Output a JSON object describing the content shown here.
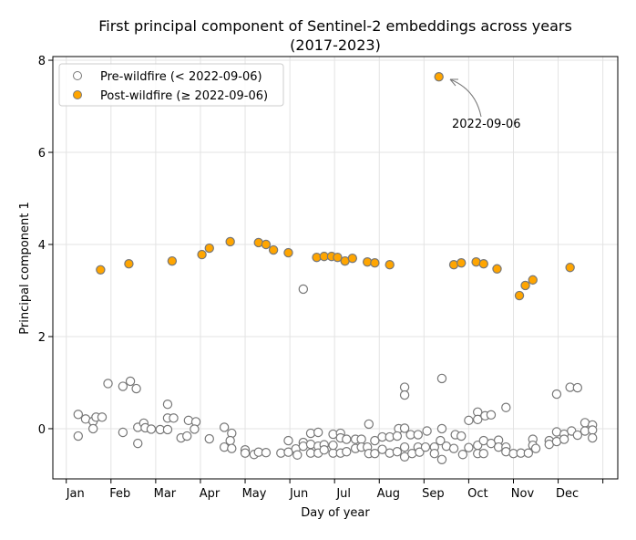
{
  "chart_data": {
    "type": "scatter",
    "title": "First principal component of Sentinel-2 embeddings across years",
    "subtitle": "(2017-2023)",
    "xlabel": "Day of year",
    "ylabel": "Principal component 1",
    "xlim": [
      -9,
      370
    ],
    "ylim": [
      -1.09,
      8.08
    ],
    "grid": true,
    "legend_placement": "top-left",
    "x_ticks": [
      {
        "value": 0,
        "label": "Jan"
      },
      {
        "value": 30,
        "label": "Feb"
      },
      {
        "value": 60,
        "label": "Mar"
      },
      {
        "value": 90,
        "label": "Apr"
      },
      {
        "value": 120,
        "label": "May"
      },
      {
        "value": 150,
        "label": "Jun"
      },
      {
        "value": 180,
        "label": "Jul"
      },
      {
        "value": 210,
        "label": "Aug"
      },
      {
        "value": 240,
        "label": "Sep"
      },
      {
        "value": 270,
        "label": "Oct"
      },
      {
        "value": 300,
        "label": "Nov"
      },
      {
        "value": 330,
        "label": "Dec"
      },
      {
        "value": 360,
        "label": ""
      }
    ],
    "y_ticks": [
      {
        "value": 0,
        "label": "0"
      },
      {
        "value": 2,
        "label": "2"
      },
      {
        "value": 4,
        "label": "4"
      },
      {
        "value": 6,
        "label": "6"
      },
      {
        "value": 8,
        "label": "8"
      }
    ],
    "annotation": {
      "text": "2022-09-06",
      "x": 250,
      "y": 7.64
    },
    "series": [
      {
        "name": "Pre-wildfire (< 2022-09-06)",
        "fill": "#ffffff",
        "edge": "#777777",
        "points": [
          [
            8,
            0.31
          ],
          [
            13,
            0.21
          ],
          [
            18,
            0.16
          ],
          [
            20,
            0.25
          ],
          [
            24,
            0.25
          ],
          [
            18,
            0.0
          ],
          [
            8,
            -0.16
          ],
          [
            28,
            0.98
          ],
          [
            38,
            0.92
          ],
          [
            43,
            1.03
          ],
          [
            47,
            0.87
          ],
          [
            38,
            -0.08
          ],
          [
            48,
            0.03
          ],
          [
            52,
            0.12
          ],
          [
            53,
            0.02
          ],
          [
            57,
            -0.01
          ],
          [
            48,
            -0.32
          ],
          [
            63,
            -0.02
          ],
          [
            68,
            -0.02
          ],
          [
            68,
            0.53
          ],
          [
            68,
            0.23
          ],
          [
            72,
            0.23
          ],
          [
            77,
            -0.2
          ],
          [
            81,
            -0.16
          ],
          [
            82,
            0.18
          ],
          [
            87,
            0.15
          ],
          [
            86,
            -0.01
          ],
          [
            96,
            -0.22
          ],
          [
            106,
            0.03
          ],
          [
            111,
            -0.1
          ],
          [
            110,
            -0.26
          ],
          [
            106,
            -0.4
          ],
          [
            111,
            -0.43
          ],
          [
            120,
            -0.46
          ],
          [
            120,
            -0.53
          ],
          [
            126,
            -0.56
          ],
          [
            129,
            -0.51
          ],
          [
            134,
            -0.52
          ],
          [
            144,
            -0.53
          ],
          [
            149,
            -0.26
          ],
          [
            149,
            -0.51
          ],
          [
            154,
            -0.44
          ],
          [
            155,
            -0.57
          ],
          [
            159,
            -0.3
          ],
          [
            159,
            -0.38
          ],
          [
            164,
            -0.1
          ],
          [
            169,
            -0.08
          ],
          [
            164,
            -0.34
          ],
          [
            164,
            -0.53
          ],
          [
            169,
            -0.38
          ],
          [
            169,
            -0.53
          ],
          [
            173,
            -0.35
          ],
          [
            173,
            -0.46
          ],
          [
            179,
            -0.12
          ],
          [
            179,
            -0.53
          ],
          [
            159,
            3.03
          ],
          [
            184,
            -0.1
          ],
          [
            179,
            -0.36
          ],
          [
            184,
            -0.2
          ],
          [
            184,
            -0.53
          ],
          [
            188,
            -0.23
          ],
          [
            188,
            -0.5
          ],
          [
            194,
            -0.23
          ],
          [
            194,
            -0.43
          ],
          [
            198,
            -0.23
          ],
          [
            198,
            -0.4
          ],
          [
            203,
            0.1
          ],
          [
            202,
            -0.4
          ],
          [
            203,
            -0.54
          ],
          [
            207,
            -0.26
          ],
          [
            207,
            -0.54
          ],
          [
            212,
            -0.18
          ],
          [
            212,
            -0.45
          ],
          [
            217,
            -0.18
          ],
          [
            217,
            -0.53
          ],
          [
            223,
            0.0
          ],
          [
            222,
            -0.16
          ],
          [
            222,
            -0.5
          ],
          [
            227,
            0.9
          ],
          [
            227,
            0.73
          ],
          [
            227,
            0.01
          ],
          [
            227,
            -0.4
          ],
          [
            227,
            -0.61
          ],
          [
            231,
            -0.13
          ],
          [
            232,
            -0.54
          ],
          [
            236,
            -0.13
          ],
          [
            236,
            -0.4
          ],
          [
            237,
            -0.51
          ],
          [
            242,
            -0.05
          ],
          [
            241,
            -0.4
          ],
          [
            247,
            -0.4
          ],
          [
            247,
            -0.54
          ],
          [
            252,
            1.09
          ],
          [
            252,
            0.0
          ],
          [
            252,
            -0.67
          ],
          [
            251,
            -0.26
          ],
          [
            255,
            -0.38
          ],
          [
            261,
            -0.13
          ],
          [
            265,
            -0.16
          ],
          [
            260,
            -0.43
          ],
          [
            266,
            -0.56
          ],
          [
            270,
            0.18
          ],
          [
            276,
            0.36
          ],
          [
            276,
            0.2
          ],
          [
            281,
            0.28
          ],
          [
            285,
            0.3
          ],
          [
            270,
            -0.41
          ],
          [
            276,
            -0.36
          ],
          [
            276,
            -0.54
          ],
          [
            280,
            -0.26
          ],
          [
            280,
            -0.54
          ],
          [
            285,
            -0.32
          ],
          [
            290,
            -0.25
          ],
          [
            290,
            -0.4
          ],
          [
            295,
            0.46
          ],
          [
            295,
            -0.4
          ],
          [
            295,
            -0.5
          ],
          [
            300,
            -0.54
          ],
          [
            305,
            -0.53
          ],
          [
            310,
            -0.53
          ],
          [
            313,
            -0.23
          ],
          [
            313,
            -0.36
          ],
          [
            315,
            -0.43
          ],
          [
            324,
            -0.26
          ],
          [
            324,
            -0.34
          ],
          [
            329,
            0.75
          ],
          [
            329,
            -0.07
          ],
          [
            329,
            -0.28
          ],
          [
            334,
            -0.12
          ],
          [
            334,
            -0.23
          ],
          [
            338,
            0.9
          ],
          [
            343,
            0.89
          ],
          [
            339,
            -0.05
          ],
          [
            343,
            -0.14
          ],
          [
            348,
            0.13
          ],
          [
            348,
            -0.05
          ],
          [
            353,
            0.08
          ],
          [
            353,
            -0.03
          ],
          [
            353,
            -0.2
          ]
        ]
      },
      {
        "name": "Post-wildfire (≥ 2022-09-06)",
        "fill": "#ffa500",
        "edge": "#777777",
        "points": [
          [
            23,
            3.45
          ],
          [
            42,
            3.58
          ],
          [
            71,
            3.64
          ],
          [
            91,
            3.78
          ],
          [
            96,
            3.92
          ],
          [
            110,
            4.06
          ],
          [
            129,
            4.04
          ],
          [
            134,
            4.0
          ],
          [
            139,
            3.88
          ],
          [
            149,
            3.82
          ],
          [
            168,
            3.72
          ],
          [
            173,
            3.74
          ],
          [
            178,
            3.74
          ],
          [
            182,
            3.72
          ],
          [
            187,
            3.64
          ],
          [
            192,
            3.7
          ],
          [
            202,
            3.62
          ],
          [
            207,
            3.6
          ],
          [
            217,
            3.56
          ],
          [
            250,
            7.64
          ],
          [
            260,
            3.56
          ],
          [
            265,
            3.6
          ],
          [
            275,
            3.62
          ],
          [
            280,
            3.58
          ],
          [
            289,
            3.47
          ],
          [
            304,
            2.89
          ],
          [
            308,
            3.11
          ],
          [
            313,
            3.23
          ],
          [
            338,
            3.5
          ]
        ]
      }
    ]
  }
}
